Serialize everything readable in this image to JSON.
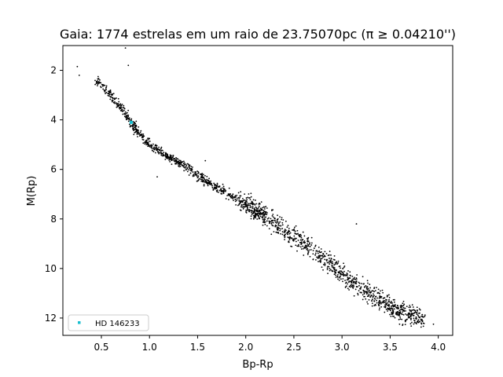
{
  "chart_data": {
    "type": "scatter",
    "title": "Gaia: 1774 estrelas em um raio de 23.75070pc (π ≥ 0.04210'')",
    "xlabel": "Bp-Rp",
    "ylabel": "M(Rp)",
    "xlim": [
      0.1,
      4.15
    ],
    "ylim": [
      12.7,
      1.0
    ],
    "y_inverted": true,
    "grid": false,
    "x_ticks": [
      "0.5",
      "1.0",
      "1.5",
      "2.0",
      "2.5",
      "3.0",
      "3.5",
      "4.0"
    ],
    "y_ticks": [
      "2",
      "4",
      "6",
      "8",
      "10",
      "12"
    ],
    "legend": {
      "position": "bottom-left",
      "entries": [
        "HD 146233"
      ]
    },
    "series": [
      {
        "name": "",
        "color": "#000000",
        "count": 1774,
        "main_sequence_trend": [
          [
            0.45,
            2.4
          ],
          [
            0.6,
            3.0
          ],
          [
            0.75,
            3.8
          ],
          [
            0.9,
            4.6
          ],
          [
            1.0,
            5.0
          ],
          [
            1.2,
            5.5
          ],
          [
            1.4,
            5.95
          ],
          [
            1.6,
            6.5
          ],
          [
            1.8,
            6.95
          ],
          [
            2.0,
            7.4
          ],
          [
            2.2,
            7.9
          ],
          [
            2.4,
            8.4
          ],
          [
            2.6,
            9.0
          ],
          [
            2.8,
            9.6
          ],
          [
            3.0,
            10.2
          ],
          [
            3.2,
            10.8
          ],
          [
            3.4,
            11.3
          ],
          [
            3.6,
            11.75
          ],
          [
            3.85,
            12.1
          ]
        ],
        "outliers": [
          [
            0.25,
            1.85
          ],
          [
            0.27,
            2.2
          ],
          [
            0.75,
            1.1
          ],
          [
            0.78,
            1.8
          ],
          [
            1.58,
            5.65
          ],
          [
            3.15,
            8.2
          ],
          [
            3.95,
            12.25
          ],
          [
            1.08,
            6.3
          ]
        ]
      },
      {
        "name": "HD 146233",
        "color": "#17becf",
        "points": [
          [
            0.81,
            4.1
          ]
        ]
      }
    ]
  }
}
